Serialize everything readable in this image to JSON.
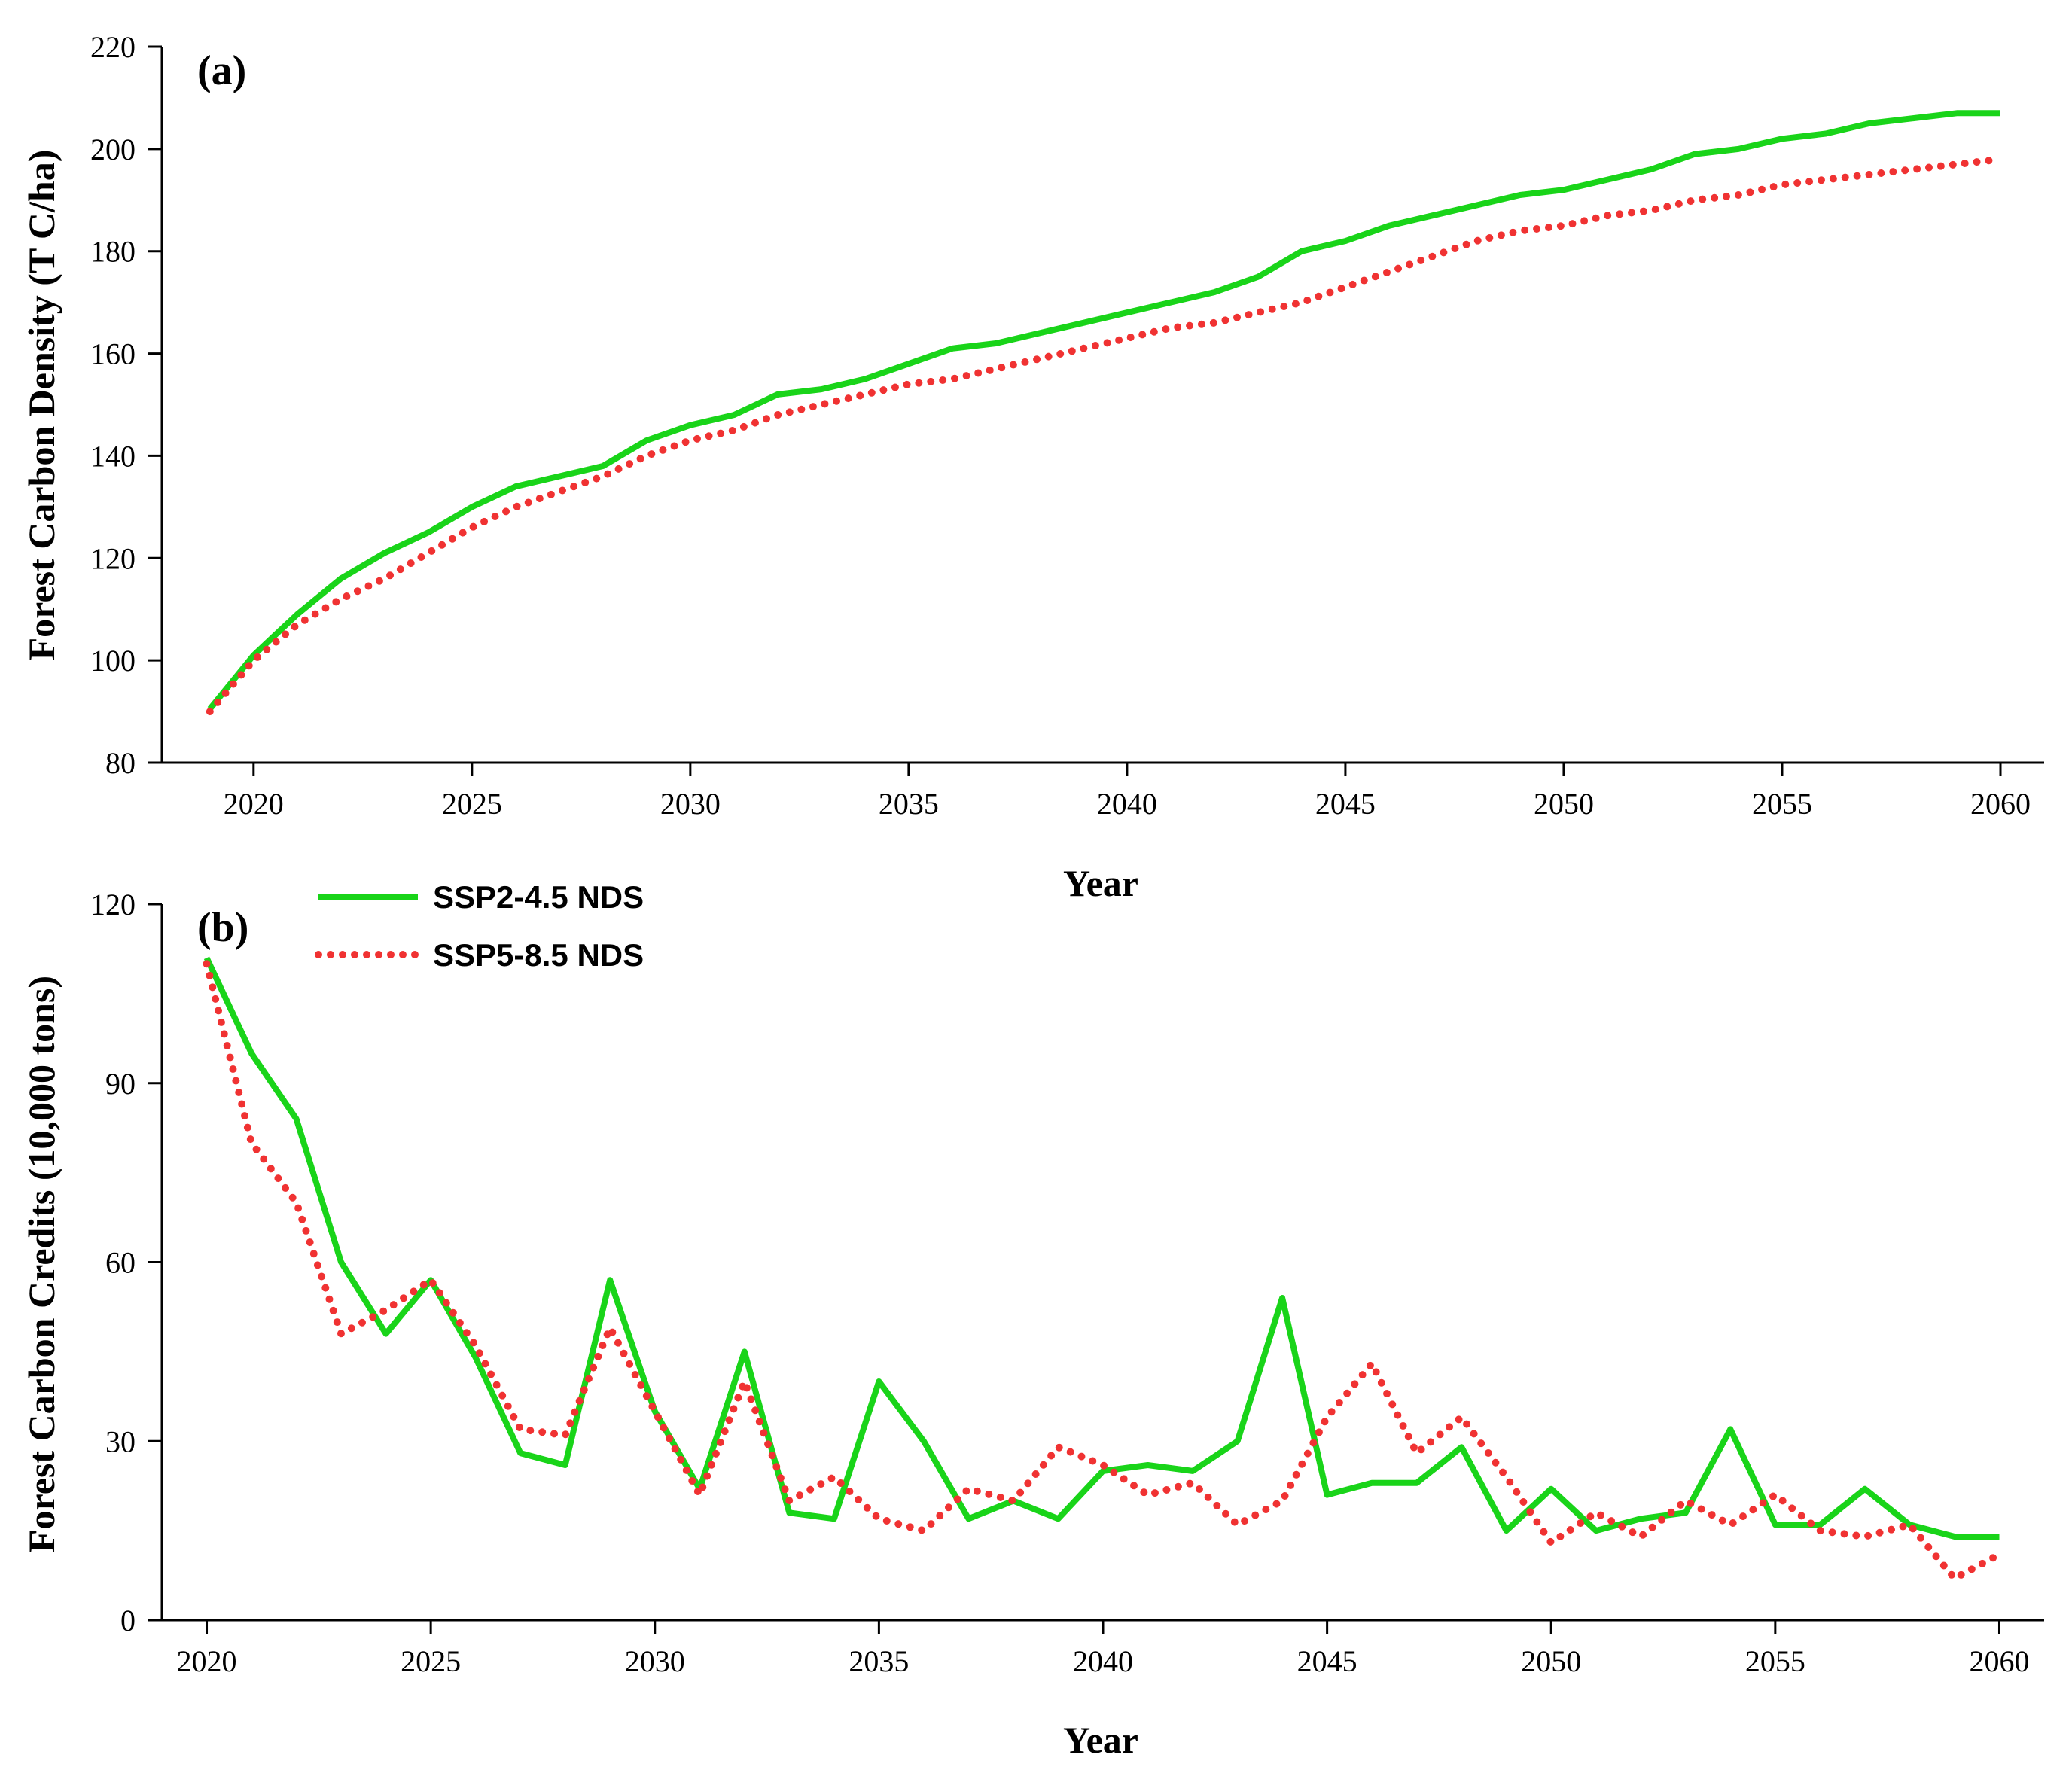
{
  "colors": {
    "ssp245": "#19d419",
    "ssp585": "#f03232"
  },
  "legend": {
    "ssp245": "SSP2-4.5 NDS",
    "ssp585": "SSP5-8.5 NDS"
  },
  "chart_data": [
    {
      "type": "line",
      "panel_label": "(a)",
      "title": "",
      "xlabel": "Year",
      "ylabel": "Forest Carbon Density (T C/ha)",
      "xlim": [
        2017.9,
        2061
      ],
      "ylim": [
        80,
        220
      ],
      "xticks": [
        2020,
        2025,
        2030,
        2035,
        2040,
        2045,
        2050,
        2055,
        2060
      ],
      "yticks": [
        80,
        100,
        120,
        140,
        160,
        180,
        200,
        220
      ],
      "x": [
        2019,
        2020,
        2021,
        2022,
        2023,
        2024,
        2025,
        2026,
        2027,
        2028,
        2029,
        2030,
        2031,
        2032,
        2033,
        2034,
        2035,
        2036,
        2037,
        2038,
        2039,
        2040,
        2041,
        2042,
        2043,
        2044,
        2045,
        2046,
        2047,
        2048,
        2049,
        2050,
        2051,
        2052,
        2053,
        2054,
        2055,
        2056,
        2057,
        2058,
        2059,
        2060
      ],
      "series": [
        {
          "name": "SSP2-4.5 NDS",
          "style": "solid",
          "values": [
            90.5,
            101,
            109,
            116,
            121,
            125,
            130,
            134,
            136,
            138,
            143,
            146,
            148,
            152,
            153,
            155,
            158,
            161,
            162,
            164,
            166,
            168,
            170,
            172,
            175,
            180,
            182,
            185,
            187,
            189,
            191,
            192,
            194,
            196,
            199,
            200,
            202,
            203,
            205,
            206,
            207,
            207
          ]
        },
        {
          "name": "SSP5-8.5 NDS",
          "style": "dotted",
          "values": [
            90,
            100,
            107,
            112,
            116,
            121,
            126,
            130,
            133,
            136,
            140,
            143,
            145,
            148,
            150,
            152,
            154,
            155,
            157,
            159,
            161,
            163,
            165,
            166,
            168,
            170,
            173,
            176,
            179,
            182,
            184,
            185,
            187,
            188,
            190,
            191,
            193,
            194,
            195,
            196,
            197,
            198
          ]
        }
      ]
    },
    {
      "type": "line",
      "panel_label": "(b)",
      "title": "",
      "xlabel": "Year",
      "ylabel": "Forest Carbon Credits (10,000 tons)",
      "xlim": [
        2019,
        2061
      ],
      "ylim": [
        0,
        120
      ],
      "xticks": [
        2020,
        2025,
        2030,
        2035,
        2040,
        2045,
        2050,
        2055,
        2060
      ],
      "yticks": [
        0,
        30,
        60,
        90,
        120
      ],
      "x": [
        2020,
        2021,
        2022,
        2023,
        2024,
        2025,
        2026,
        2027,
        2028,
        2029,
        2030,
        2031,
        2032,
        2033,
        2034,
        2035,
        2036,
        2037,
        2038,
        2039,
        2040,
        2041,
        2042,
        2043,
        2044,
        2045,
        2046,
        2047,
        2048,
        2049,
        2050,
        2051,
        2052,
        2053,
        2054,
        2055,
        2056,
        2057,
        2058,
        2059,
        2060
      ],
      "series": [
        {
          "name": "SSP2-4.5 NDS",
          "style": "solid",
          "values": [
            111,
            95,
            84,
            60,
            48,
            57,
            44,
            28,
            26,
            57,
            35,
            22,
            45,
            18,
            17,
            40,
            30,
            17,
            20,
            17,
            25,
            26,
            25,
            30,
            54,
            21,
            23,
            23,
            29,
            15,
            22,
            15,
            17,
            18,
            32,
            16,
            16,
            22,
            16,
            14,
            14
          ]
        },
        {
          "name": "SSP5-8.5 NDS",
          "style": "dotted",
          "values": [
            110,
            80,
            70,
            48,
            52,
            57,
            46,
            32,
            31,
            49,
            35,
            21,
            40,
            20,
            24,
            17,
            15,
            22,
            20,
            29,
            26,
            21,
            23,
            16,
            20,
            34,
            43,
            28,
            34,
            24,
            13,
            18,
            14,
            20,
            16,
            21,
            15,
            14,
            16,
            7,
            11
          ]
        }
      ]
    }
  ]
}
